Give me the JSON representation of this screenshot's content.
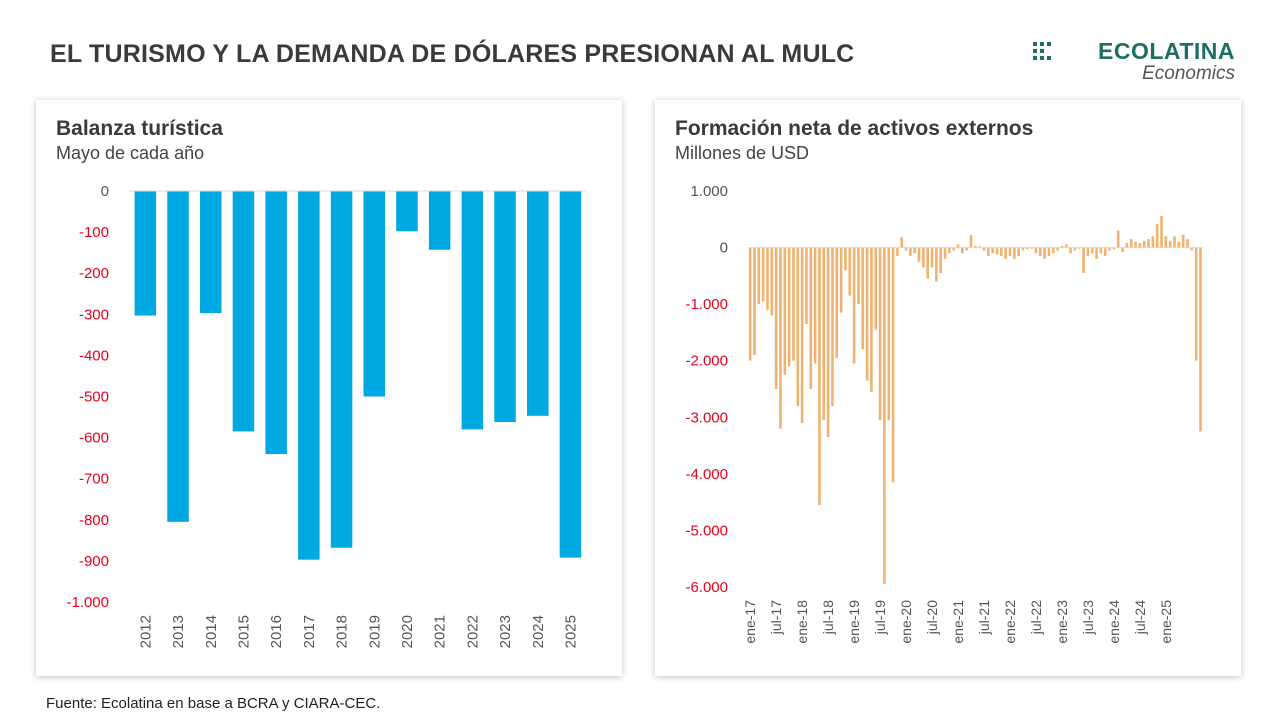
{
  "page": {
    "title": "EL TURISMO Y LA DEMANDA DE DÓLARES PRESIONAN AL MULC",
    "logo": {
      "name": "ECOLATINA",
      "sub": "Economics"
    },
    "source": "Fuente: Ecolatina en base a BCRA y CIARA-CEC."
  },
  "colors": {
    "bar_left": "#00a8e1",
    "bar_right": "#f0b26f",
    "negative_tick": "#e8001c",
    "logo": "#1e6e63"
  },
  "chart_data": [
    {
      "type": "bar",
      "title": "Balanza turística",
      "subtitle": "Mayo de cada año",
      "categories": [
        "2012",
        "2013",
        "2014",
        "2015",
        "2016",
        "2017",
        "2018",
        "2019",
        "2020",
        "2021",
        "2022",
        "2023",
        "2024",
        "2025"
      ],
      "values": [
        -303,
        -805,
        -297,
        -585,
        -640,
        -897,
        -868,
        -500,
        -98,
        -143,
        -580,
        -562,
        -547,
        -892
      ],
      "ylim": [
        -1000,
        0
      ],
      "yticks": [
        0,
        -100,
        -200,
        -300,
        -400,
        -500,
        -600,
        -700,
        -800,
        -900,
        -1000
      ],
      "ytick_labels": [
        "0",
        "-100",
        "-200",
        "-300",
        "-400",
        "-500",
        "-600",
        "-700",
        "-800",
        "-900",
        "-1.000"
      ]
    },
    {
      "type": "bar",
      "title": "Formación neta de activos externos",
      "subtitle": "Millones de USD",
      "x_labels": [
        "ene-17",
        "jul-17",
        "ene-18",
        "jul-18",
        "ene-19",
        "jul-19",
        "ene-20",
        "jul-20",
        "ene-21",
        "jul-21",
        "ene-22",
        "jul-22",
        "ene-23",
        "jul-23",
        "ene-24",
        "jul-24",
        "ene-25"
      ],
      "ylim": [
        -6000,
        1000
      ],
      "yticks": [
        1000,
        0,
        -1000,
        -2000,
        -3000,
        -4000,
        -5000,
        -6000
      ],
      "ytick_labels": [
        "1.000",
        "0",
        "-1.000",
        "-2.000",
        "-3.000",
        "-4.000",
        "-5.000",
        "-6.000"
      ],
      "values": [
        -2000,
        -1900,
        -1000,
        -950,
        -1100,
        -1200,
        -2500,
        -3200,
        -2250,
        -2100,
        -2000,
        -2800,
        -3100,
        -1350,
        -2500,
        -2050,
        -4550,
        -3050,
        -3350,
        -2800,
        -1950,
        -1150,
        -400,
        -850,
        -2050,
        -1000,
        -1800,
        -2350,
        -2550,
        -1450,
        -3050,
        -5950,
        -3050,
        -4150,
        -150,
        180,
        -50,
        -150,
        -100,
        -250,
        -350,
        -550,
        -350,
        -600,
        -450,
        -200,
        -100,
        -50,
        60,
        -100,
        -50,
        220,
        30,
        20,
        -50,
        -150,
        -100,
        -120,
        -150,
        -200,
        -150,
        -200,
        -150,
        -50,
        -30,
        -20,
        -100,
        -150,
        -200,
        -150,
        -100,
        -50,
        30,
        60,
        -100,
        -50,
        -20,
        -450,
        -150,
        -100,
        -200,
        -100,
        -150,
        -50,
        -30,
        300,
        -80,
        80,
        150,
        100,
        80,
        120,
        150,
        200,
        420,
        560,
        200,
        120,
        200,
        100,
        230,
        150,
        -50,
        -2000,
        -3250
      ]
    }
  ]
}
